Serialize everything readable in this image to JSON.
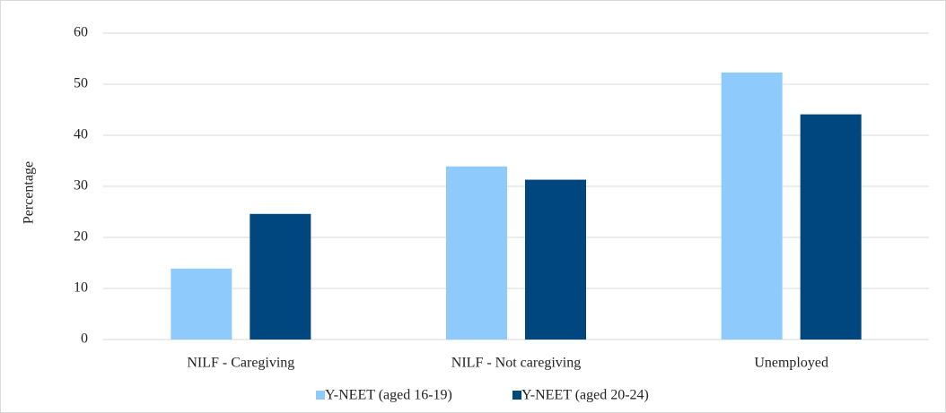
{
  "chart_data": {
    "type": "bar",
    "y_label": "Percentage",
    "categories": [
      "NILF - Caregiving",
      "NILF - Not caregiving",
      "Unemployed"
    ],
    "series": [
      {
        "name": "Y-NEET (aged 16-19)",
        "color": "#8ecbfc",
        "values": [
          13.9,
          33.9,
          52.3
        ]
      },
      {
        "name": "Y-NEET (aged 20-24)",
        "color": "#00467f",
        "values": [
          24.6,
          31.3,
          44.1
        ]
      }
    ],
    "ylim": [
      0,
      60
    ],
    "yticks": [
      0,
      10,
      20,
      30,
      40,
      50,
      60
    ],
    "grid": true,
    "legend": "bottom"
  }
}
